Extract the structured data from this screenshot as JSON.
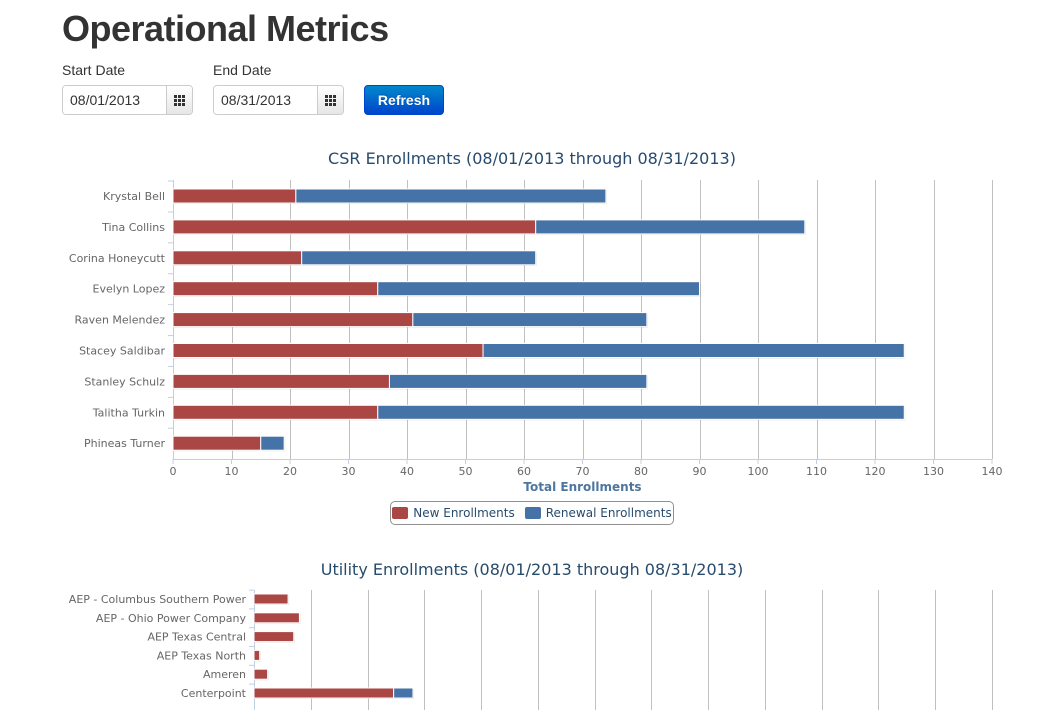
{
  "page": {
    "title": "Operational Metrics"
  },
  "filters": {
    "start_label": "Start Date",
    "start_value": "08/01/2013",
    "end_label": "End Date",
    "end_value": "08/31/2013",
    "refresh_label": "Refresh",
    "calendar_icon": "calendar-grid-icon"
  },
  "colors": {
    "new": "#aa4643",
    "renewal": "#4572a7",
    "grid": "#c0c0c0",
    "axis_label": "#4d759e",
    "tick": "#666666"
  },
  "chart_data": [
    {
      "type": "bar",
      "orientation": "horizontal",
      "stacked": true,
      "title": "CSR Enrollments (08/01/2013 through 08/31/2013)",
      "xlabel": "Total Enrollments",
      "ylabel": "",
      "xlim": [
        0,
        140
      ],
      "ticks": [
        "0",
        "10",
        "20",
        "30",
        "40",
        "50",
        "60",
        "70",
        "80",
        "90",
        "100",
        "110",
        "120",
        "130",
        "140"
      ],
      "categories": [
        "Krystal Bell",
        "Tina Collins",
        "Corina Honeycutt",
        "Evelyn Lopez",
        "Raven Melendez",
        "Stacey Saldibar",
        "Stanley Schulz",
        "Talitha Turkin",
        "Phineas Turner"
      ],
      "series": [
        {
          "name": "New Enrollments",
          "values": [
            21,
            62,
            22,
            35,
            41,
            53,
            37,
            35,
            15
          ]
        },
        {
          "name": "Renewal Enrollments",
          "values": [
            53,
            46,
            40,
            55,
            40,
            72,
            44,
            90,
            4
          ]
        }
      ],
      "legend": "bottom-center"
    },
    {
      "type": "bar",
      "orientation": "horizontal",
      "stacked": true,
      "title": "Utility Enrollments (08/01/2013 through 08/31/2013)",
      "xlabel": "",
      "ylabel": "",
      "xlim": [
        0,
        65
      ],
      "categories": [
        "AEP - Columbus Southern Power",
        "AEP - Ohio Power Company",
        "AEP Texas Central",
        "AEP Texas North",
        "Ameren",
        "Centerpoint"
      ],
      "series": [
        {
          "name": "New Enrollments",
          "values": [
            3,
            4,
            3.5,
            0.5,
            1.2,
            12.3
          ]
        },
        {
          "name": "Renewal Enrollments",
          "values": [
            0,
            0,
            0,
            0,
            0,
            1.7
          ]
        }
      ]
    }
  ]
}
